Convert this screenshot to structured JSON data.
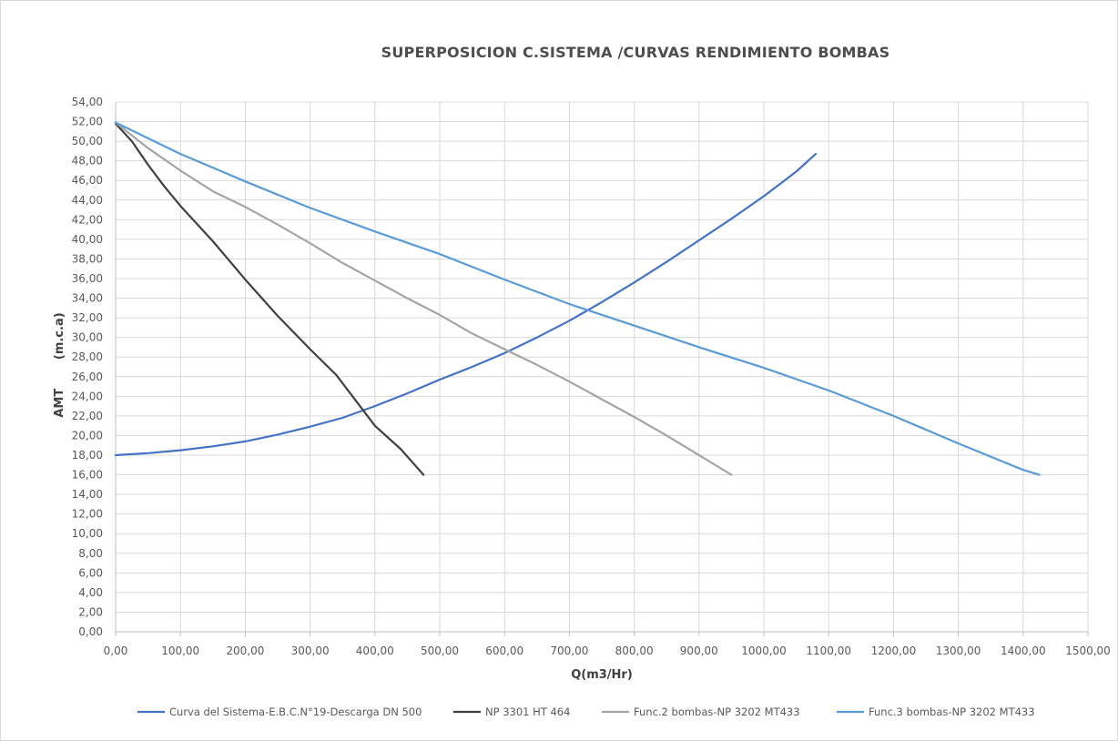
{
  "chart_data": {
    "type": "line",
    "title": "SUPERPOSICION C.SISTEMA /CURVAS RENDIMIENTO BOMBAS",
    "xlabel": "Q(m3/Hr)",
    "ylabel": "AMT       (m.c.a)",
    "xlim": [
      0,
      1500
    ],
    "ylim": [
      0,
      54
    ],
    "grid": true,
    "legend_position": "bottom",
    "x_ticks": [
      "0,00",
      "100,00",
      "200,00",
      "300,00",
      "400,00",
      "500,00",
      "600,00",
      "700,00",
      "800,00",
      "900,00",
      "1000,00",
      "1100,00",
      "1200,00",
      "1300,00",
      "1400,00",
      "1500,00"
    ],
    "y_ticks": [
      "0,00",
      "2,00",
      "4,00",
      "6,00",
      "8,00",
      "10,00",
      "12,00",
      "14,00",
      "16,00",
      "18,00",
      "20,00",
      "22,00",
      "24,00",
      "26,00",
      "28,00",
      "30,00",
      "32,00",
      "34,00",
      "36,00",
      "38,00",
      "40,00",
      "42,00",
      "44,00",
      "46,00",
      "48,00",
      "50,00",
      "52,00",
      "54,00"
    ],
    "series": [
      {
        "name": "Curva del Sistema-E.B.C.N°19-Descarga DN 500",
        "color": "#4472c4",
        "points": [
          [
            0,
            18.0
          ],
          [
            50,
            18.2
          ],
          [
            100,
            18.5
          ],
          [
            150,
            18.9
          ],
          [
            200,
            19.4
          ],
          [
            250,
            20.1
          ],
          [
            300,
            20.9
          ],
          [
            350,
            21.8
          ],
          [
            400,
            23.0
          ],
          [
            450,
            24.3
          ],
          [
            500,
            25.7
          ],
          [
            550,
            27.0
          ],
          [
            600,
            28.4
          ],
          [
            650,
            30.0
          ],
          [
            700,
            31.7
          ],
          [
            750,
            33.6
          ],
          [
            800,
            35.6
          ],
          [
            850,
            37.7
          ],
          [
            900,
            39.9
          ],
          [
            950,
            42.1
          ],
          [
            1000,
            44.4
          ],
          [
            1050,
            46.9
          ],
          [
            1080,
            48.7
          ]
        ]
      },
      {
        "name": "NP 3301 HT 464",
        "color": "#404040",
        "points": [
          [
            0,
            51.8
          ],
          [
            25,
            50.0
          ],
          [
            50,
            47.6
          ],
          [
            75,
            45.4
          ],
          [
            100,
            43.4
          ],
          [
            150,
            39.8
          ],
          [
            200,
            35.9
          ],
          [
            250,
            32.2
          ],
          [
            300,
            28.8
          ],
          [
            340,
            26.2
          ],
          [
            370,
            23.6
          ],
          [
            400,
            21.0
          ],
          [
            440,
            18.6
          ],
          [
            475,
            16.0
          ]
        ]
      },
      {
        "name": "Func.2 bombas-NP 3202 MT433",
        "color": "#a5a5a5",
        "points": [
          [
            0,
            51.9
          ],
          [
            50,
            49.3
          ],
          [
            100,
            47.0
          ],
          [
            150,
            44.9
          ],
          [
            200,
            43.3
          ],
          [
            250,
            41.5
          ],
          [
            300,
            39.6
          ],
          [
            350,
            37.6
          ],
          [
            400,
            35.8
          ],
          [
            450,
            34.0
          ],
          [
            500,
            32.3
          ],
          [
            550,
            30.4
          ],
          [
            600,
            28.8
          ],
          [
            650,
            27.2
          ],
          [
            700,
            25.5
          ],
          [
            750,
            23.7
          ],
          [
            800,
            21.9
          ],
          [
            850,
            20.0
          ],
          [
            900,
            18.0
          ],
          [
            950,
            16.0
          ]
        ]
      },
      {
        "name": "Func.3 bombas-NP 3202 MT433",
        "color": "#5b9bd5",
        "points": [
          [
            0,
            51.9
          ],
          [
            100,
            48.7
          ],
          [
            200,
            45.9
          ],
          [
            300,
            43.2
          ],
          [
            400,
            40.8
          ],
          [
            500,
            38.5
          ],
          [
            600,
            35.9
          ],
          [
            700,
            33.4
          ],
          [
            800,
            31.2
          ],
          [
            900,
            29.0
          ],
          [
            1000,
            26.9
          ],
          [
            1100,
            24.6
          ],
          [
            1200,
            22.0
          ],
          [
            1300,
            19.2
          ],
          [
            1400,
            16.5
          ],
          [
            1425,
            16.0
          ]
        ]
      }
    ]
  }
}
